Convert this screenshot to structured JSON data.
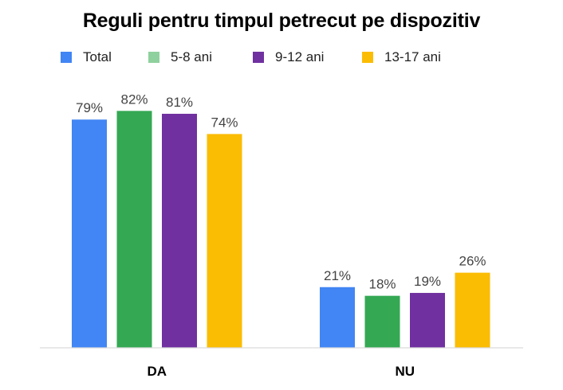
{
  "chart_data": {
    "type": "bar",
    "title": "Reguli pentru timpul petrecut pe dispozitiv",
    "xlabel": "",
    "ylabel": "",
    "categories": [
      "DA",
      "NU"
    ],
    "series": [
      {
        "name": "Total",
        "color": "#4285F4",
        "values": [
          79,
          21
        ],
        "labels": [
          "79%",
          "21%"
        ]
      },
      {
        "name": "5-8 ani",
        "color": "#34A853",
        "values": [
          82,
          18
        ],
        "labels": [
          "82%",
          "18%"
        ]
      },
      {
        "name": "9-12 ani",
        "color": "#7030A0",
        "values": [
          81,
          19
        ],
        "labels": [
          "81%",
          "19%"
        ]
      },
      {
        "name": "13-17 ani",
        "color": "#FBBC04",
        "values": [
          74,
          26
        ],
        "labels": [
          "74%",
          "26%"
        ]
      }
    ],
    "legend_swatch_colors": [
      "#4285F4",
      "#8FD19E",
      "#7030A0",
      "#FBBC04"
    ],
    "ylim": [
      0,
      100
    ],
    "grid": false,
    "legend_position": "top"
  }
}
